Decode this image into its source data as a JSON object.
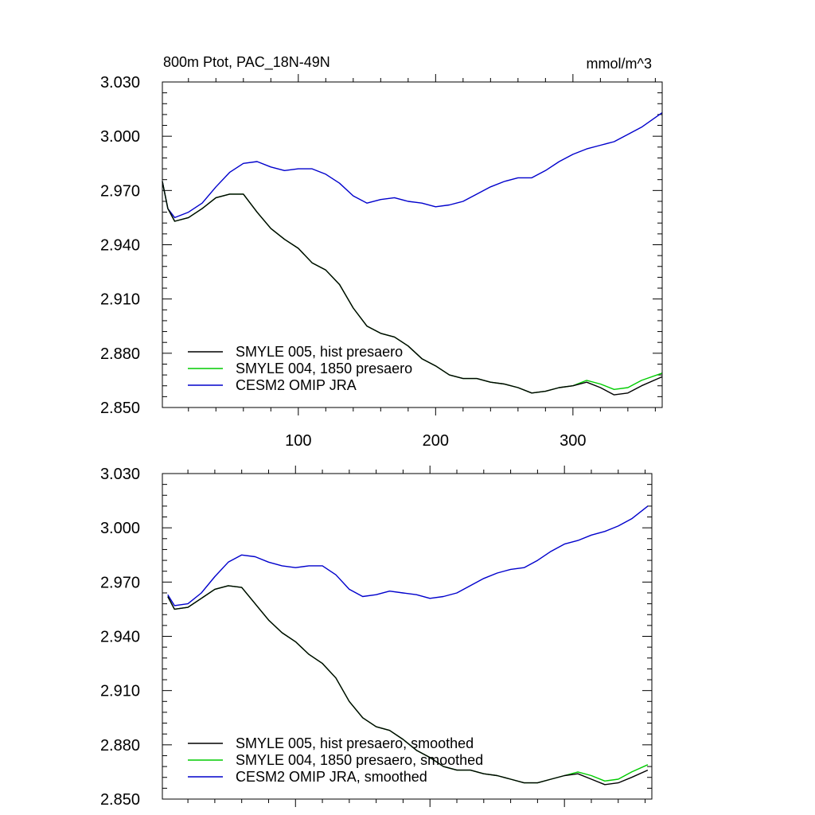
{
  "chart_data": [
    {
      "type": "line",
      "title": "800m Ptot, PAC_18N-49N",
      "units": "mmol/m^3",
      "xlim": [
        1,
        365
      ],
      "ylim": [
        2.85,
        3.03
      ],
      "x_ticks": [
        100,
        200,
        300
      ],
      "x_tick_labels": [
        "100",
        "200",
        "300"
      ],
      "y_ticks": [
        2.85,
        2.88,
        2.91,
        2.94,
        2.97,
        3.0,
        3.03
      ],
      "y_tick_labels": [
        "2.850",
        "2.880",
        "2.910",
        "2.940",
        "2.970",
        "3.000",
        "3.030"
      ],
      "legend_position": "bottom-left",
      "series": [
        {
          "name": "SMYLE 005, hist presaero",
          "color": "#000000",
          "x": [
            1,
            5,
            10,
            20,
            30,
            40,
            50,
            60,
            70,
            80,
            90,
            100,
            110,
            120,
            130,
            140,
            150,
            160,
            170,
            180,
            190,
            200,
            210,
            220,
            230,
            240,
            250,
            260,
            270,
            280,
            290,
            300,
            310,
            320,
            330,
            340,
            350,
            365
          ],
          "y": [
            2.975,
            2.96,
            2.953,
            2.955,
            2.96,
            2.966,
            2.968,
            2.968,
            2.958,
            2.949,
            2.943,
            2.938,
            2.93,
            2.926,
            2.918,
            2.905,
            2.895,
            2.891,
            2.889,
            2.884,
            2.877,
            2.873,
            2.868,
            2.866,
            2.866,
            2.864,
            2.863,
            2.861,
            2.858,
            2.859,
            2.861,
            2.862,
            2.864,
            2.861,
            2.857,
            2.858,
            2.862,
            2.867
          ]
        },
        {
          "name": "SMYLE 004, 1850 presaero",
          "color": "#00cc00",
          "x": [
            1,
            5,
            10,
            20,
            30,
            40,
            50,
            60,
            70,
            80,
            90,
            100,
            110,
            120,
            130,
            140,
            150,
            160,
            170,
            180,
            190,
            200,
            210,
            220,
            230,
            240,
            250,
            260,
            270,
            280,
            290,
            300,
            310,
            320,
            330,
            340,
            350,
            365
          ],
          "y": [
            2.975,
            2.96,
            2.953,
            2.955,
            2.96,
            2.966,
            2.968,
            2.968,
            2.958,
            2.949,
            2.943,
            2.938,
            2.93,
            2.926,
            2.918,
            2.905,
            2.895,
            2.891,
            2.889,
            2.884,
            2.877,
            2.873,
            2.868,
            2.866,
            2.866,
            2.864,
            2.863,
            2.861,
            2.858,
            2.859,
            2.861,
            2.862,
            2.865,
            2.863,
            2.86,
            2.861,
            2.865,
            2.869
          ]
        },
        {
          "name": "CESM2 OMIP JRA",
          "color": "#0000cc",
          "x": [
            1,
            5,
            10,
            20,
            30,
            40,
            50,
            60,
            70,
            80,
            90,
            100,
            110,
            120,
            130,
            140,
            150,
            160,
            170,
            180,
            190,
            200,
            210,
            220,
            230,
            240,
            250,
            260,
            270,
            280,
            290,
            300,
            310,
            320,
            330,
            340,
            350,
            365
          ],
          "y": [
            2.975,
            2.96,
            2.955,
            2.958,
            2.963,
            2.972,
            2.98,
            2.985,
            2.986,
            2.983,
            2.981,
            2.982,
            2.982,
            2.979,
            2.974,
            2.967,
            2.963,
            2.965,
            2.966,
            2.964,
            2.963,
            2.961,
            2.962,
            2.964,
            2.968,
            2.972,
            2.975,
            2.977,
            2.977,
            2.981,
            2.986,
            2.99,
            2.993,
            2.995,
            2.997,
            3.001,
            3.005,
            3.013
          ]
        }
      ]
    },
    {
      "type": "line",
      "title": "",
      "units": "",
      "xlim": [
        1,
        365
      ],
      "ylim": [
        2.85,
        3.03
      ],
      "x_ticks": [
        100,
        200,
        300
      ],
      "x_tick_labels": [
        "",
        "",
        ""
      ],
      "y_ticks": [
        2.85,
        2.88,
        2.91,
        2.94,
        2.97,
        3.0,
        3.03
      ],
      "y_tick_labels": [
        "2.850",
        "2.880",
        "2.910",
        "2.940",
        "2.970",
        "3.000",
        "3.030"
      ],
      "legend_position": "bottom-left",
      "series": [
        {
          "name": "SMYLE 005, hist presaero, smoothed",
          "color": "#000000",
          "x": [
            5,
            10,
            20,
            30,
            40,
            50,
            60,
            70,
            80,
            90,
            100,
            110,
            120,
            130,
            140,
            150,
            160,
            170,
            180,
            190,
            200,
            210,
            220,
            230,
            240,
            250,
            260,
            270,
            280,
            290,
            300,
            310,
            320,
            330,
            340,
            350,
            362
          ],
          "y": [
            2.962,
            2.955,
            2.956,
            2.961,
            2.966,
            2.968,
            2.967,
            2.958,
            2.949,
            2.942,
            2.937,
            2.93,
            2.925,
            2.917,
            2.904,
            2.895,
            2.89,
            2.888,
            2.883,
            2.877,
            2.873,
            2.868,
            2.866,
            2.866,
            2.864,
            2.863,
            2.861,
            2.859,
            2.859,
            2.861,
            2.863,
            2.864,
            2.861,
            2.858,
            2.859,
            2.862,
            2.866
          ]
        },
        {
          "name": "SMYLE 004, 1850 presaero, smoothed",
          "color": "#00cc00",
          "x": [
            5,
            10,
            20,
            30,
            40,
            50,
            60,
            70,
            80,
            90,
            100,
            110,
            120,
            130,
            140,
            150,
            160,
            170,
            180,
            190,
            200,
            210,
            220,
            230,
            240,
            250,
            260,
            270,
            280,
            290,
            300,
            310,
            320,
            330,
            340,
            350,
            362
          ],
          "y": [
            2.962,
            2.955,
            2.956,
            2.961,
            2.966,
            2.968,
            2.967,
            2.958,
            2.949,
            2.942,
            2.937,
            2.93,
            2.925,
            2.917,
            2.904,
            2.895,
            2.89,
            2.888,
            2.883,
            2.877,
            2.873,
            2.868,
            2.866,
            2.866,
            2.864,
            2.863,
            2.861,
            2.859,
            2.859,
            2.861,
            2.863,
            2.865,
            2.863,
            2.86,
            2.861,
            2.865,
            2.869
          ]
        },
        {
          "name": "CESM2 OMIP JRA, smoothed",
          "color": "#0000cc",
          "x": [
            5,
            10,
            20,
            30,
            40,
            50,
            60,
            70,
            80,
            90,
            100,
            110,
            120,
            130,
            140,
            150,
            160,
            170,
            180,
            190,
            200,
            210,
            220,
            230,
            240,
            250,
            260,
            270,
            280,
            290,
            300,
            310,
            320,
            330,
            340,
            350,
            362
          ],
          "y": [
            2.963,
            2.957,
            2.958,
            2.964,
            2.973,
            2.981,
            2.985,
            2.984,
            2.981,
            2.979,
            2.978,
            2.979,
            2.979,
            2.974,
            2.966,
            2.962,
            2.963,
            2.965,
            2.964,
            2.963,
            2.961,
            2.962,
            2.964,
            2.968,
            2.972,
            2.975,
            2.977,
            2.978,
            2.982,
            2.987,
            2.991,
            2.993,
            2.996,
            2.998,
            3.001,
            3.005,
            3.012
          ]
        }
      ]
    }
  ]
}
